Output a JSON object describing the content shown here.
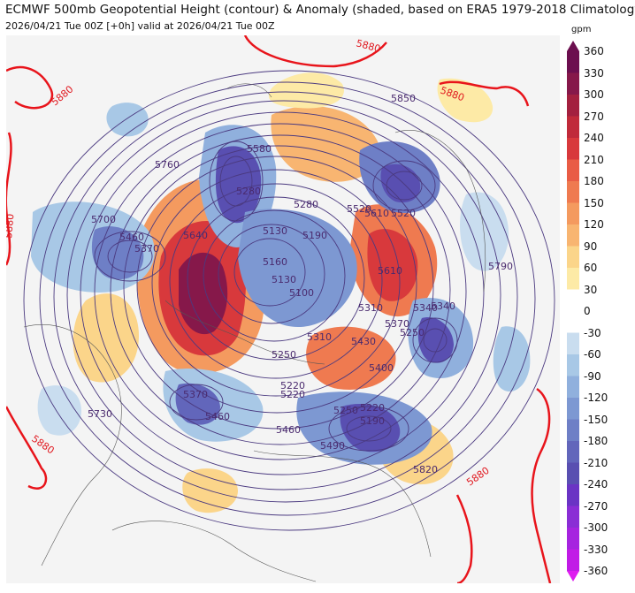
{
  "title": "ECMWF 500mb Geopotential Height (contour) & Anomaly (shaded, based on ERA5 1979-2018 Climatology)",
  "subtitle": "2026/04/21 Tue 00Z [+0h] valid at 2026/04/21 Tue 00Z",
  "colorbar": {
    "unit": "gpm",
    "ticks": [
      "360",
      "330",
      "300",
      "270",
      "240",
      "210",
      "180",
      "150",
      "120",
      "90",
      "60",
      "30",
      "0",
      "-30",
      "-60",
      "-90",
      "-120",
      "-150",
      "-180",
      "-210",
      "-240",
      "-270",
      "-300",
      "-330",
      "-360"
    ],
    "colors": {
      "pos": [
        "#fdeaa6",
        "#fbd58a",
        "#f8b571",
        "#f49a5f",
        "#ef7a50",
        "#e95c45",
        "#d8393c",
        "#c02a3a",
        "#a3203f",
        "#86184a",
        "#6c0f4f"
      ],
      "neg": [
        "#c9ddef",
        "#a8c8e6",
        "#90b0dd",
        "#7d98d2",
        "#6e7fc6",
        "#6266bb",
        "#594fb1",
        "#6a34c4",
        "#8a2ed5",
        "#a624df",
        "#c11be6",
        "#de1df0"
      ]
    }
  },
  "contour_labels": {
    "purple": [
      "5850",
      "5760",
      "5700",
      "5640",
      "5460",
      "5580",
      "5520",
      "5610",
      "5790",
      "5370",
      "5250",
      "5430",
      "5220",
      "5460",
      "5490",
      "5250",
      "5220",
      "5190",
      "5820",
      "5310",
      "5280",
      "5130",
      "5190",
      "5310",
      "5370",
      "5340",
      "5250",
      "5520",
      "5610",
      "5400",
      "5730",
      "5370",
      "5220",
      "5280",
      "5160",
      "5130",
      "5100",
      "5460",
      "5340"
    ],
    "red_5880": [
      "5880",
      "5880",
      "5880",
      "5880",
      "5880",
      "5880"
    ]
  }
}
